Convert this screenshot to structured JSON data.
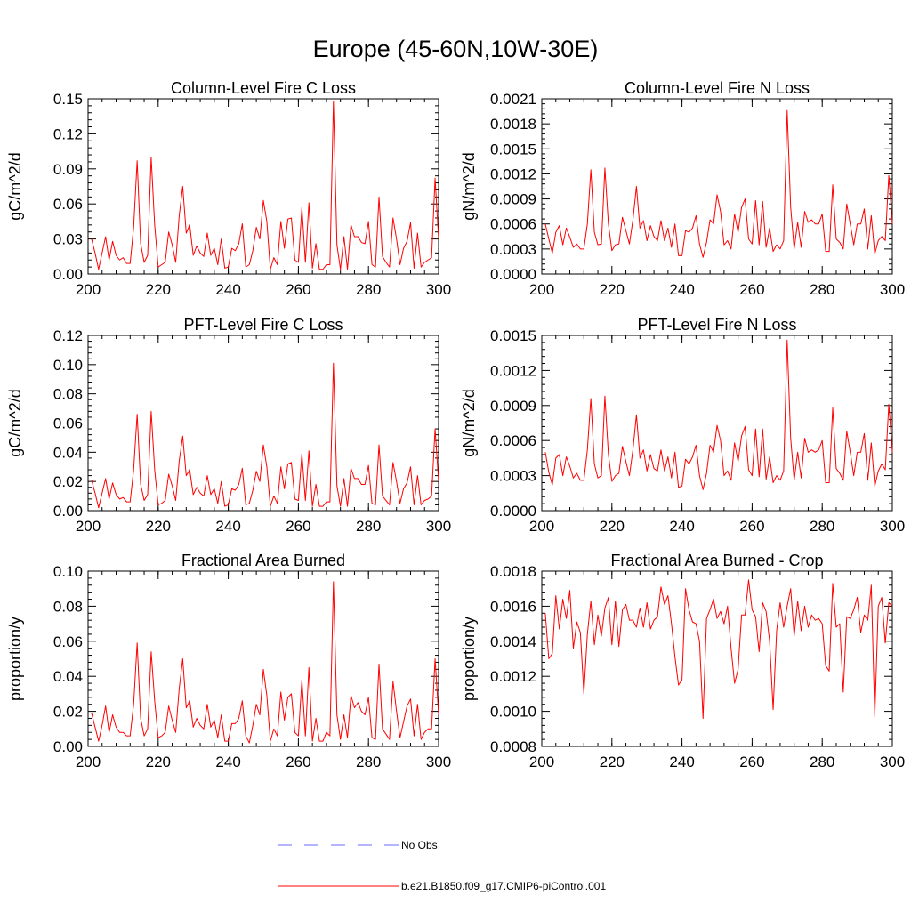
{
  "title": "Europe (45-60N,10W-30E)",
  "colors": {
    "model": "#ff0000",
    "obs": "#6a6aff",
    "axis": "#000000"
  },
  "legend": [
    {
      "label": "No Obs",
      "style": "dashed",
      "color": "#6a6aff"
    },
    {
      "label": "b.e21.B1850.f09_g17.CMIP6-piControl.001",
      "style": "solid",
      "color": "#ff0000"
    }
  ],
  "chart_data": [
    {
      "type": "line",
      "title": "Column-Level Fire C Loss",
      "ylabel": "gC/m^2/d",
      "xlim": [
        200,
        300
      ],
      "ylim": [
        0,
        0.15
      ],
      "xticks": [
        200,
        220,
        240,
        260,
        280,
        300
      ],
      "xtick_labels": [
        "200",
        "220",
        "240",
        "260",
        "280",
        "300"
      ],
      "yticks": [
        0,
        0.03,
        0.06,
        0.09,
        0.12,
        0.15
      ],
      "ytick_labels": [
        "0.00",
        "0.03",
        "0.06",
        "0.09",
        "0.12",
        "0.15"
      ],
      "x_start": 201,
      "series": [
        {
          "name": "b.e21.B1850.f09_g17.CMIP6-piControl.001",
          "values": [
            0.03,
            0.018,
            0.004,
            0.018,
            0.032,
            0.012,
            0.028,
            0.016,
            0.012,
            0.014,
            0.009,
            0.009,
            0.04,
            0.097,
            0.026,
            0.01,
            0.016,
            0.1,
            0.042,
            0.006,
            0.008,
            0.01,
            0.036,
            0.025,
            0.01,
            0.05,
            0.075,
            0.035,
            0.042,
            0.016,
            0.024,
            0.018,
            0.015,
            0.035,
            0.016,
            0.022,
            0.008,
            0.03,
            0.005,
            0.006,
            0.022,
            0.02,
            0.026,
            0.043,
            0.006,
            0.008,
            0.02,
            0.04,
            0.03,
            0.063,
            0.045,
            0.004,
            0.014,
            0.008,
            0.045,
            0.022,
            0.047,
            0.048,
            0.012,
            0.01,
            0.057,
            0.01,
            0.061,
            0.005,
            0.026,
            0.004,
            0.004,
            0.008,
            0.008,
            0.148,
            0.025,
            0.004,
            0.032,
            0.004,
            0.042,
            0.032,
            0.032,
            0.027,
            0.026,
            0.045,
            0.008,
            0.006,
            0.066,
            0.015,
            0.01,
            0.006,
            0.048,
            0.03,
            0.008,
            0.022,
            0.028,
            0.044,
            0.005,
            0.035,
            0.006,
            0.01,
            0.012,
            0.014,
            0.082,
            0.03
          ]
        }
      ]
    },
    {
      "type": "line",
      "title": "Column-Level Fire N Loss",
      "ylabel": "gN/m^2/d",
      "xlim": [
        200,
        300
      ],
      "ylim": [
        0,
        0.0021
      ],
      "xticks": [
        200,
        220,
        240,
        260,
        280,
        300
      ],
      "xtick_labels": [
        "200",
        "220",
        "240",
        "260",
        "280",
        "300"
      ],
      "yticks": [
        0,
        0.0003,
        0.0006,
        0.0009,
        0.0012,
        0.0015,
        0.0018,
        0.0021
      ],
      "ytick_labels": [
        "0.0000",
        "0.0003",
        "0.0006",
        "0.0009",
        "0.0012",
        "0.0015",
        "0.0018",
        "0.0021"
      ],
      "x_start": 201,
      "series": [
        {
          "name": "b.e21.B1850.f09_g17.CMIP6-piControl.001",
          "values": [
            0.0006,
            0.00042,
            0.00025,
            0.0005,
            0.00058,
            0.00035,
            0.00055,
            0.00044,
            0.00032,
            0.00036,
            0.0003,
            0.0003,
            0.0006,
            0.00125,
            0.0005,
            0.00035,
            0.00036,
            0.00127,
            0.0006,
            0.00028,
            0.00035,
            0.00036,
            0.00068,
            0.00052,
            0.00036,
            0.00065,
            0.00105,
            0.00055,
            0.00064,
            0.0004,
            0.00058,
            0.00045,
            0.0004,
            0.00064,
            0.0004,
            0.00055,
            0.00032,
            0.0006,
            0.00022,
            0.00022,
            0.00052,
            0.0005,
            0.00055,
            0.0007,
            0.00036,
            0.0002,
            0.00038,
            0.00065,
            0.0006,
            0.00095,
            0.00075,
            0.00035,
            0.0004,
            0.0003,
            0.00072,
            0.0005,
            0.0008,
            0.0009,
            0.00042,
            0.00036,
            0.00088,
            0.00035,
            0.00087,
            0.00032,
            0.00055,
            0.00027,
            0.00035,
            0.0003,
            0.0004,
            0.00196,
            0.0008,
            0.0003,
            0.00062,
            0.00032,
            0.00075,
            0.00062,
            0.00065,
            0.0006,
            0.0006,
            0.00072,
            0.00027,
            0.00027,
            0.00107,
            0.00042,
            0.00038,
            0.0003,
            0.00084,
            0.0006,
            0.00035,
            0.0006,
            0.0006,
            0.00078,
            0.0003,
            0.0007,
            0.00024,
            0.0004,
            0.00045,
            0.0004,
            0.00118,
            0.0006
          ]
        }
      ]
    },
    {
      "type": "line",
      "title": "PFT-Level Fire C Loss",
      "ylabel": "gC/m^2/d",
      "xlim": [
        200,
        300
      ],
      "ylim": [
        0,
        0.12
      ],
      "xticks": [
        200,
        220,
        240,
        260,
        280,
        300
      ],
      "xtick_labels": [
        "200",
        "220",
        "240",
        "260",
        "280",
        "300"
      ],
      "yticks": [
        0,
        0.02,
        0.04,
        0.06,
        0.08,
        0.1,
        0.12
      ],
      "ytick_labels": [
        "0.00",
        "0.02",
        "0.04",
        "0.06",
        "0.08",
        "0.10",
        "0.12"
      ],
      "x_start": 201,
      "series": [
        {
          "name": "b.e21.B1850.f09_g17.CMIP6-piControl.001",
          "values": [
            0.021,
            0.012,
            0.002,
            0.012,
            0.022,
            0.008,
            0.019,
            0.011,
            0.008,
            0.009,
            0.006,
            0.006,
            0.028,
            0.066,
            0.018,
            0.007,
            0.011,
            0.068,
            0.028,
            0.004,
            0.005,
            0.007,
            0.025,
            0.017,
            0.007,
            0.034,
            0.051,
            0.024,
            0.028,
            0.011,
            0.016,
            0.012,
            0.01,
            0.024,
            0.011,
            0.015,
            0.005,
            0.02,
            0.003,
            0.004,
            0.015,
            0.014,
            0.018,
            0.029,
            0.004,
            0.005,
            0.014,
            0.027,
            0.02,
            0.045,
            0.03,
            0.003,
            0.01,
            0.005,
            0.03,
            0.015,
            0.032,
            0.033,
            0.008,
            0.007,
            0.039,
            0.007,
            0.041,
            0.003,
            0.018,
            0.003,
            0.003,
            0.006,
            0.006,
            0.101,
            0.017,
            0.003,
            0.022,
            0.003,
            0.029,
            0.022,
            0.022,
            0.018,
            0.018,
            0.031,
            0.005,
            0.004,
            0.045,
            0.01,
            0.007,
            0.004,
            0.033,
            0.02,
            0.005,
            0.015,
            0.019,
            0.03,
            0.004,
            0.024,
            0.004,
            0.007,
            0.008,
            0.01,
            0.056,
            0.02
          ]
        }
      ]
    },
    {
      "type": "line",
      "title": "PFT-Level Fire N Loss",
      "ylabel": "gN/m^2/d",
      "xlim": [
        200,
        300
      ],
      "ylim": [
        0,
        0.0015
      ],
      "xticks": [
        200,
        220,
        240,
        260,
        280,
        300
      ],
      "xtick_labels": [
        "200",
        "220",
        "240",
        "260",
        "280",
        "300"
      ],
      "yticks": [
        0,
        0.0003,
        0.0006,
        0.0009,
        0.0012,
        0.0015
      ],
      "ytick_labels": [
        "0.0000",
        "0.0003",
        "0.0006",
        "0.0009",
        "0.0012",
        "0.0015"
      ],
      "x_start": 201,
      "series": [
        {
          "name": "b.e21.B1850.f09_g17.CMIP6-piControl.001",
          "values": [
            0.0005,
            0.00033,
            0.00022,
            0.00045,
            0.00048,
            0.0003,
            0.00046,
            0.00038,
            0.00028,
            0.00032,
            0.00026,
            0.00026,
            0.00052,
            0.00096,
            0.0004,
            0.00028,
            0.0003,
            0.00098,
            0.00048,
            0.00025,
            0.0003,
            0.00032,
            0.00055,
            0.00042,
            0.0003,
            0.00052,
            0.00082,
            0.00045,
            0.00052,
            0.00034,
            0.00048,
            0.00036,
            0.00034,
            0.00052,
            0.00034,
            0.00046,
            0.00028,
            0.0005,
            0.0002,
            0.00021,
            0.00044,
            0.0004,
            0.00046,
            0.00056,
            0.0003,
            0.00018,
            0.00032,
            0.00056,
            0.0005,
            0.00073,
            0.0006,
            0.0003,
            0.00034,
            0.00026,
            0.00058,
            0.00042,
            0.00064,
            0.00072,
            0.00035,
            0.0003,
            0.0007,
            0.00029,
            0.0007,
            0.00027,
            0.00046,
            0.00024,
            0.0003,
            0.00026,
            0.00034,
            0.00146,
            0.00062,
            0.00026,
            0.0005,
            0.00028,
            0.00062,
            0.0005,
            0.00052,
            0.0005,
            0.00052,
            0.0006,
            0.00024,
            0.00024,
            0.00088,
            0.00036,
            0.00032,
            0.00026,
            0.00068,
            0.0005,
            0.0003,
            0.0005,
            0.0005,
            0.00066,
            0.00026,
            0.00058,
            0.00021,
            0.00034,
            0.0004,
            0.00035,
            0.00091,
            0.0005
          ]
        }
      ]
    },
    {
      "type": "line",
      "title": "Fractional Area Burned",
      "ylabel": "proportion/y",
      "xlim": [
        200,
        300
      ],
      "ylim": [
        0,
        0.1
      ],
      "xticks": [
        200,
        220,
        240,
        260,
        280,
        300
      ],
      "xtick_labels": [
        "200",
        "220",
        "240",
        "260",
        "280",
        "300"
      ],
      "yticks": [
        0,
        0.02,
        0.04,
        0.06,
        0.08,
        0.1
      ],
      "ytick_labels": [
        "0.00",
        "0.02",
        "0.04",
        "0.06",
        "0.08",
        "0.10"
      ],
      "x_start": 201,
      "series": [
        {
          "name": "b.e21.B1850.f09_g17.CMIP6-piControl.001",
          "values": [
            0.019,
            0.011,
            0.003,
            0.012,
            0.023,
            0.008,
            0.018,
            0.011,
            0.008,
            0.008,
            0.006,
            0.006,
            0.024,
            0.059,
            0.016,
            0.006,
            0.01,
            0.054,
            0.026,
            0.005,
            0.006,
            0.008,
            0.023,
            0.015,
            0.008,
            0.033,
            0.05,
            0.022,
            0.026,
            0.011,
            0.016,
            0.012,
            0.01,
            0.024,
            0.011,
            0.015,
            0.005,
            0.018,
            0.003,
            0.003,
            0.013,
            0.013,
            0.016,
            0.026,
            0.006,
            0.002,
            0.012,
            0.024,
            0.018,
            0.044,
            0.029,
            0.003,
            0.01,
            0.006,
            0.031,
            0.015,
            0.028,
            0.03,
            0.008,
            0.006,
            0.038,
            0.006,
            0.045,
            0.003,
            0.016,
            0.003,
            0.003,
            0.008,
            0.006,
            0.094,
            0.018,
            0.004,
            0.018,
            0.005,
            0.029,
            0.022,
            0.025,
            0.02,
            0.018,
            0.028,
            0.005,
            0.004,
            0.047,
            0.01,
            0.007,
            0.004,
            0.037,
            0.02,
            0.005,
            0.014,
            0.023,
            0.027,
            0.006,
            0.024,
            0.004,
            0.008,
            0.01,
            0.01,
            0.05,
            0.018
          ]
        }
      ]
    },
    {
      "type": "line",
      "title": "Fractional Area Burned - Crop",
      "ylabel": "proportion/y",
      "xlim": [
        200,
        300
      ],
      "ylim": [
        0.0008,
        0.0018
      ],
      "xticks": [
        200,
        220,
        240,
        260,
        280,
        300
      ],
      "xtick_labels": [
        "200",
        "220",
        "240",
        "260",
        "280",
        "300"
      ],
      "yticks": [
        0.0008,
        0.001,
        0.0012,
        0.0014,
        0.0016,
        0.0018
      ],
      "ytick_labels": [
        "0.0008",
        "0.0010",
        "0.0012",
        "0.0014",
        "0.0016",
        "0.0018"
      ],
      "x_start": 201,
      "series": [
        {
          "name": "b.e21.B1850.f09_g17.CMIP6-piControl.001",
          "values": [
            0.00156,
            0.0013,
            0.00133,
            0.00166,
            0.00147,
            0.00164,
            0.00153,
            0.00169,
            0.00136,
            0.00151,
            0.00145,
            0.0011,
            0.00144,
            0.00163,
            0.00138,
            0.00155,
            0.00143,
            0.00159,
            0.00165,
            0.00138,
            0.00163,
            0.00137,
            0.00158,
            0.00161,
            0.00152,
            0.00152,
            0.00148,
            0.00159,
            0.00148,
            0.00162,
            0.00147,
            0.00152,
            0.00154,
            0.00171,
            0.00161,
            0.00166,
            0.0015,
            0.00131,
            0.00115,
            0.00118,
            0.0017,
            0.00158,
            0.00151,
            0.0015,
            0.0014,
            0.00096,
            0.00153,
            0.00158,
            0.00164,
            0.00153,
            0.00157,
            0.0015,
            0.0016,
            0.00136,
            0.00116,
            0.00124,
            0.00155,
            0.00155,
            0.00175,
            0.00158,
            0.00154,
            0.00134,
            0.00162,
            0.00157,
            0.0014,
            0.00101,
            0.00146,
            0.00162,
            0.00148,
            0.0016,
            0.0017,
            0.00143,
            0.00163,
            0.00146,
            0.0016,
            0.00148,
            0.00155,
            0.00152,
            0.00153,
            0.0015,
            0.00126,
            0.00123,
            0.00173,
            0.00148,
            0.0015,
            0.00111,
            0.00154,
            0.00153,
            0.00158,
            0.00165,
            0.00145,
            0.00155,
            0.00152,
            0.00172,
            0.00097,
            0.0016,
            0.00165,
            0.00139,
            0.00162,
            0.0016
          ]
        }
      ]
    }
  ]
}
